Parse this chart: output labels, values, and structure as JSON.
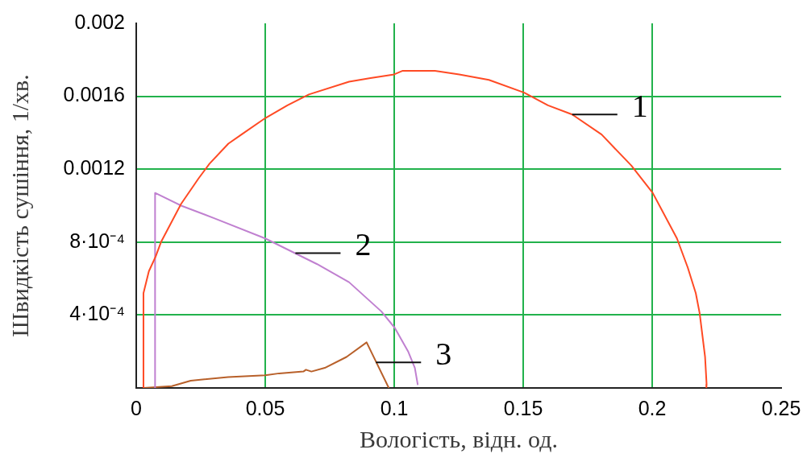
{
  "chart_data": {
    "type": "line",
    "xlabel": "Вологість, відн. од.",
    "ylabel": "Швидкість сушіння, 1/хв.",
    "xlim": [
      0,
      0.25
    ],
    "xticks": [
      0,
      0.05,
      0.1,
      0.15,
      0.2,
      0.25
    ],
    "ylim": [
      0,
      0.002
    ],
    "yticks": [
      {
        "value": 0.0004,
        "label": "4·10⁻⁴"
      },
      {
        "value": 0.0008,
        "label": "8·10⁻⁴"
      },
      0.0012,
      0.0016,
      0.002
    ],
    "grid": true,
    "series": [
      {
        "color": "#ff4a24",
        "x": [
          0.0028,
          0.0028,
          0.0049,
          0.0075,
          0.0096,
          0.0174,
          0.0242,
          0.0284,
          0.0357,
          0.0408,
          0.05,
          0.0586,
          0.0669,
          0.0825,
          0.0908,
          0.1,
          0.1033,
          0.1158,
          0.1252,
          0.1367,
          0.1504,
          0.1596,
          0.169,
          0.1804,
          0.1919,
          0.2002,
          0.2096,
          0.2138,
          0.2169,
          0.2184,
          0.2205,
          0.2211,
          0.221
        ],
        "values": [
          0,
          0.00052,
          0.00064,
          0.00072,
          0.0008,
          0.00101,
          0.00115,
          0.00123,
          0.00134,
          0.00139,
          0.00148,
          0.00155,
          0.00161,
          0.00168,
          0.0017,
          0.00172,
          0.00174,
          0.00174,
          0.00172,
          0.00169,
          0.00162,
          0.00155,
          0.0015,
          0.00139,
          0.00122,
          0.00107,
          0.00082,
          0.00066,
          0.00052,
          0.00041,
          0.00017,
          2e-05,
          0
        ]
      },
      {
        "color": "#c080d0",
        "x": [
          0.0073,
          0.0073,
          0.0174,
          0.0304,
          0.05,
          0.07,
          0.0825,
          0.095,
          0.1002,
          0.1054,
          0.108,
          0.1091
        ],
        "values": [
          0,
          0.00107,
          0.001,
          0.00093,
          0.00082,
          0.00068,
          0.00058,
          0.00042,
          0.00033,
          0.0002,
          0.00011,
          2e-05
        ]
      },
      {
        "color": "#b8602a",
        "x": [
          0.0028,
          0.0138,
          0.0211,
          0.0356,
          0.05,
          0.0554,
          0.0648,
          0.0658,
          0.0679,
          0.0731,
          0.0815,
          0.0893,
          0.0979
        ],
        "values": [
          0,
          1e-05,
          4e-05,
          6e-05,
          7e-05,
          8e-05,
          9e-05,
          0.0001,
          9e-05,
          0.00011,
          0.00017,
          0.00025,
          0
        ]
      }
    ],
    "annotations": [
      {
        "text": "1",
        "x": 0.169,
        "y": 0.0015
      },
      {
        "text": "2",
        "x": 0.0617,
        "y": 0.00074
      },
      {
        "text": "3",
        "x": 0.0929,
        "y": 0.00014
      }
    ]
  }
}
